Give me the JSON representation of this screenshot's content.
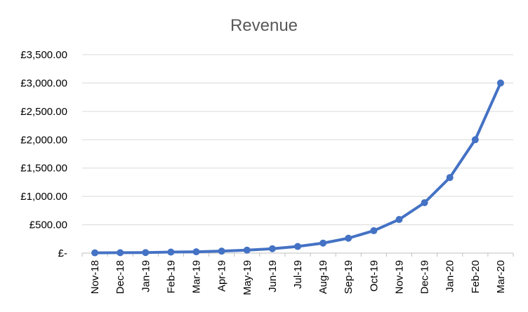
{
  "chart_data": {
    "type": "line",
    "title": "Revenue",
    "xlabel": "",
    "ylabel": "",
    "categories": [
      "Nov-18",
      "Dec-18",
      "Jan-19",
      "Feb-19",
      "Mar-19",
      "Apr-19",
      "May-19",
      "Jun-19",
      "Jul-19",
      "Aug-19",
      "Sep-19",
      "Oct-19",
      "Nov-19",
      "Dec-19",
      "Jan-20",
      "Feb-20",
      "Mar-20"
    ],
    "series": [
      {
        "values": [
          5,
          8,
          10,
          18,
          23,
          35,
          52,
          77,
          117,
          176,
          263,
          395,
          593,
          889,
          1333,
          2000,
          3000
        ],
        "color": "#4472c4"
      }
    ],
    "ylim": [
      0,
      3500
    ],
    "y_ticks": [
      0,
      500,
      1000,
      1500,
      2000,
      2500,
      3000,
      3500
    ],
    "y_tick_labels": [
      "£-",
      "£500.00",
      "£1,000.00",
      "£1,500.00",
      "£2,000.00",
      "£2,500.00",
      "£3,000.00",
      "£3,500.00"
    ],
    "grid": true,
    "legend": "none",
    "markers": true
  }
}
